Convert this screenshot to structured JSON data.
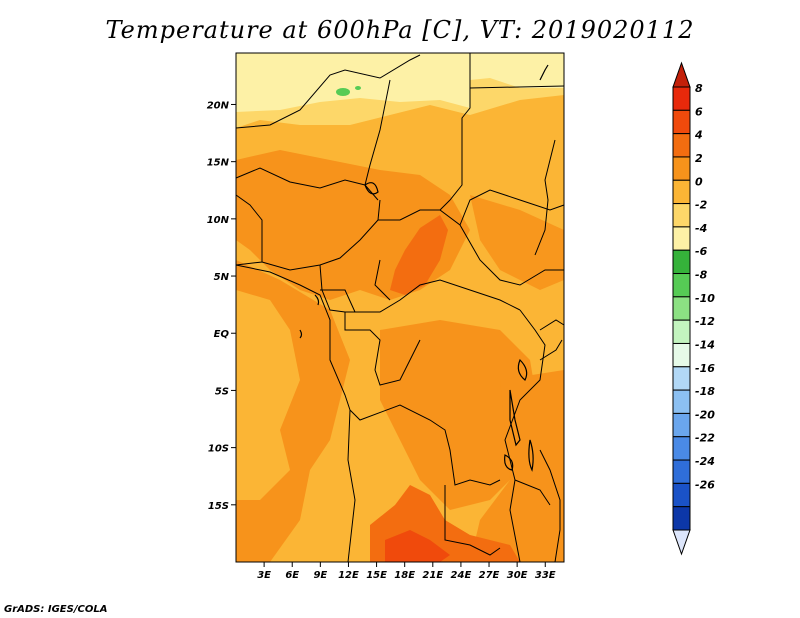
{
  "title": "Temperature at 600hPa [C], VT: 2019020112",
  "credit": "GrADS: IGES/COLA",
  "map": {
    "lat_labels": [
      "20N",
      "15N",
      "10N",
      "5N",
      "EQ",
      "5S",
      "10S",
      "15S"
    ],
    "lat_values": [
      20,
      15,
      10,
      5,
      0,
      -5,
      -10,
      -15
    ],
    "lon_labels": [
      "3E",
      "6E",
      "9E",
      "12E",
      "15E",
      "18E",
      "21E",
      "24E",
      "27E",
      "30E",
      "33E"
    ],
    "lon_values": [
      3,
      6,
      9,
      12,
      15,
      18,
      21,
      24,
      27,
      30,
      33
    ],
    "lon_range": [
      0,
      35
    ],
    "lat_range": [
      -20,
      24.5
    ]
  },
  "colorbar": {
    "labels": [
      "8",
      "6",
      "4",
      "2",
      "0",
      "-2",
      "-4",
      "-6",
      "-8",
      "-10",
      "-12",
      "-14",
      "-16",
      "-18",
      "-20",
      "-22",
      "-24",
      "-26"
    ],
    "colors": [
      "#e8290b",
      "#f04a0c",
      "#f36d10",
      "#f7931b",
      "#fbb535",
      "#fdd769",
      "#fdf1a6",
      "#35b23a",
      "#56cb55",
      "#8ce183",
      "#c3f4bf",
      "#e6fae8",
      "#b2d8f6",
      "#8cc0f2",
      "#6aa6ed",
      "#4a8ae6",
      "#2f6ed9",
      "#1a52c7",
      "#0c37a8"
    ],
    "top_arrow_color": "#c3200a",
    "bottom_arrow_color": "#dde6fb"
  }
}
